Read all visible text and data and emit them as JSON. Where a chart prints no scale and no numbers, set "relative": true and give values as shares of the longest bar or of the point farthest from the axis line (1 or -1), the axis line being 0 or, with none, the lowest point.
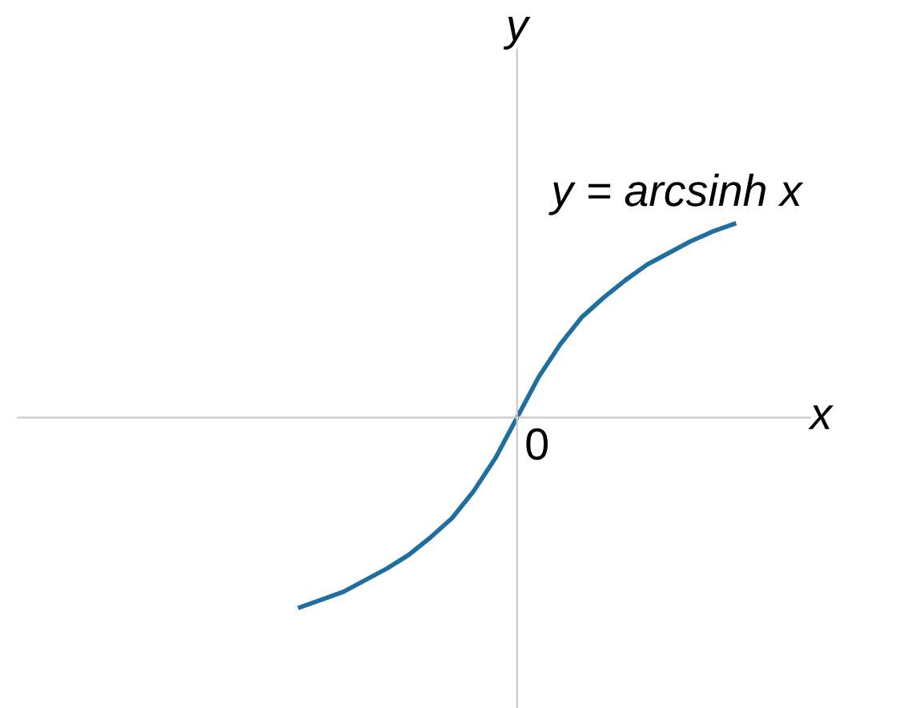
{
  "chart_data": {
    "type": "line",
    "relative": true,
    "xlabel": "x",
    "ylabel": "y",
    "categories": [
      null,
      null,
      null,
      null,
      null,
      null,
      null,
      null,
      null,
      null,
      null,
      null,
      null,
      null,
      null,
      null,
      null,
      null,
      null,
      null,
      null
    ],
    "series": [
      {
        "color": "#1f6f9e",
        "values": [
          -0.98,
          -0.94,
          -0.9,
          -0.84,
          -0.78,
          -0.71,
          -0.62,
          -0.52,
          -0.38,
          -0.21,
          0,
          0.21,
          0.38,
          0.52,
          0.62,
          0.71,
          0.79,
          0.85,
          0.91,
          0.96,
          1
        ]
      }
    ],
    "annotations": [
      "y = arcsinh x",
      "0"
    ],
    "legend": false
  }
}
